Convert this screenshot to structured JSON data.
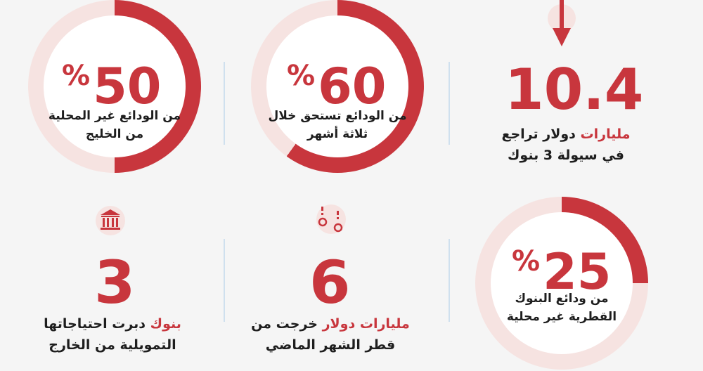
{
  "colors": {
    "accent": "#c8363d",
    "ring_track": "#f6e3e1",
    "divider": "#cfe0ee"
  },
  "stats": {
    "deposits_nonlocal_gulf": {
      "percent": "50",
      "percent_sign": "%",
      "fraction": 0.5,
      "line1": "من الودائع غير المحلية",
      "line2": "من الخليج"
    },
    "deposits_due_3_months": {
      "percent": "60",
      "percent_sign": "%",
      "fraction": 0.6,
      "line1": "من الودائع تستحق خلال",
      "line2": "ثلاثة أشهر"
    },
    "liquidity_decline": {
      "value": "10.4",
      "red_text": "مليارات",
      "line1_rest": "دولار تراجع",
      "line2": "في سيولة 3 بنوك",
      "icon": "down-arrow-icon"
    },
    "qatari_bank_deposits": {
      "percent": "25",
      "percent_sign": "%",
      "fraction": 0.25,
      "line1": "من ودائع البنوك",
      "line2": "القطرية غير محلية"
    },
    "outflow_last_month": {
      "value": "6",
      "red_text": "مليارات دولار",
      "line1_rest": "خرجت من",
      "line2": "قطر الشهر الماضي",
      "icon": "money-outflow-icon"
    },
    "banks_funding": {
      "value": "3",
      "red_text": "بنوك",
      "line1_rest": "دبرت احتياجاتها",
      "line2": "التمويلية من الخارج",
      "icon": "bank-building-icon"
    }
  }
}
